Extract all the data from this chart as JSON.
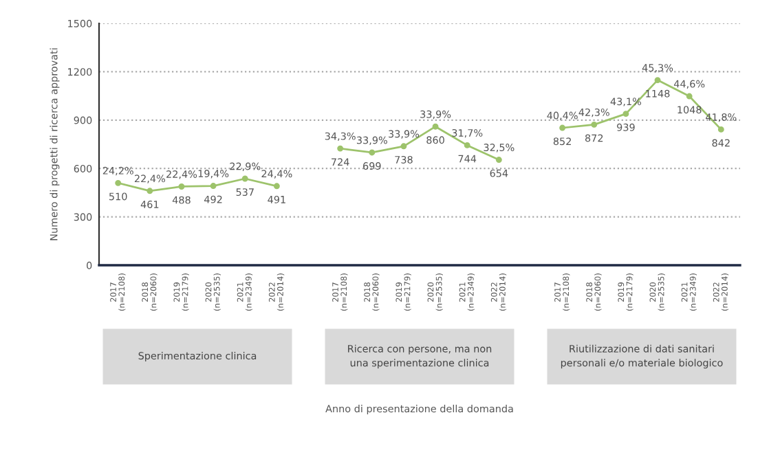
{
  "chart_data": {
    "type": "line",
    "ylabel": "Numero di progetti di ricerca approvati",
    "categories": [
      "2017\n(n=2108)",
      "2018\n(n=2060)",
      "2019\n(n=2179)",
      "2020\n(n=2535)",
      "2021\n(n=2349)",
      "2022\n(n=2014)",
      null,
      "2017\n(n=2108)",
      "2018\n(n=2060)",
      "2019\n(n=2179)",
      "2020\n(n=2535)",
      "2021\n(n=2349)",
      "2022\n(n=2014)",
      null,
      "2017\n(n=2108)",
      "2018\n(n=2060)",
      "2019\n(n=2179)",
      "2020\n(n=2535)",
      "2021\n(n=2349)",
      "2022\n(n=2014)"
    ],
    "series": [
      {
        "color": "#9dc36b",
        "values": [
          510,
          461,
          488,
          492,
          537,
          491,
          null,
          724,
          699,
          738,
          860,
          744,
          654,
          null,
          852,
          872,
          939,
          1148,
          1048,
          842
        ]
      }
    ],
    "data_labels": true,
    "marker": "circle",
    "line_style": "solid",
    "grid": "y",
    "legend": false,
    "ylim": [
      0,
      1500
    ],
    "yticks": [
      0,
      300,
      600,
      900,
      1200,
      1500
    ],
    "annotations": [
      "24,2%",
      "22,4%",
      "22,4%",
      "19,4%",
      "22,9%",
      "24,4%",
      "34,3%",
      "33,9%",
      "33,9%",
      "33,9%",
      "31,7%",
      "32,5%",
      "40,4%",
      "42,3%",
      "43,1%",
      "45,3%",
      "44,6%",
      "41,8%",
      "Sperimentazione clinica",
      "Ricerca con persone, ma non\nuna sperimentazione clinica",
      "Riutilizzazione di dati sanitari\npersonali e/o materiale biologico",
      "Anno di presentazione della domanda"
    ]
  }
}
